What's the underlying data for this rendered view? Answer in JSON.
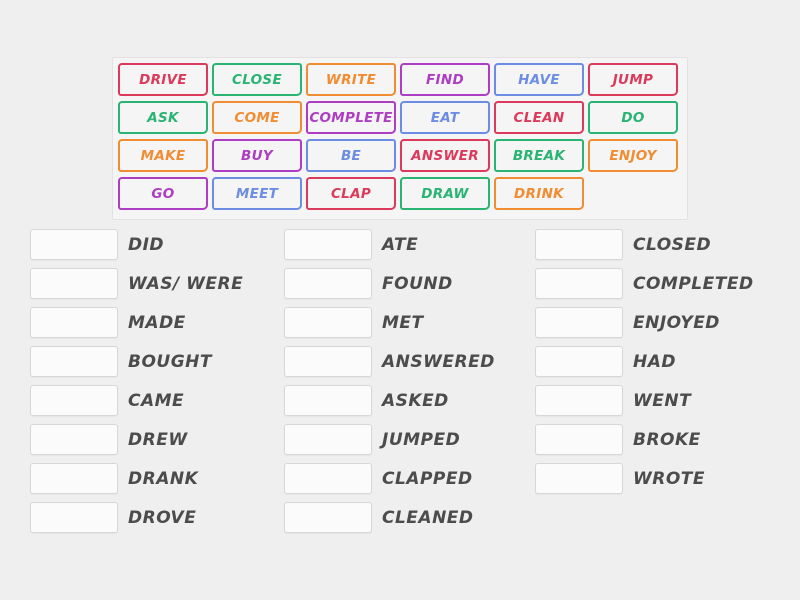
{
  "theme": {
    "page_bg": "#f0eff0",
    "panel_bg": "#f6f5f5",
    "panel_border": "#e3e1e1",
    "slot_bg": "#fcfbfb",
    "slot_border": "#d8d6d6",
    "label_color": "#4d4c4c",
    "palette": {
      "red": "#dc3a5c",
      "green": "#29b473",
      "orange": "#f08d33",
      "purple": "#ad3ec3",
      "blue": "#6d8de4"
    }
  },
  "word_bank": {
    "tiles": [
      {
        "label": "DRIVE",
        "color": "red"
      },
      {
        "label": "CLOSE",
        "color": "green"
      },
      {
        "label": "WRITE",
        "color": "orange"
      },
      {
        "label": "FIND",
        "color": "purple"
      },
      {
        "label": "HAVE",
        "color": "blue"
      },
      {
        "label": "JUMP",
        "color": "red"
      },
      {
        "label": "ASK",
        "color": "green"
      },
      {
        "label": "COME",
        "color": "orange"
      },
      {
        "label": "COMPLETE",
        "color": "purple"
      },
      {
        "label": "EAT",
        "color": "blue"
      },
      {
        "label": "CLEAN",
        "color": "red"
      },
      {
        "label": "DO",
        "color": "green"
      },
      {
        "label": "MAKE",
        "color": "orange"
      },
      {
        "label": "BUY",
        "color": "purple"
      },
      {
        "label": "BE",
        "color": "blue"
      },
      {
        "label": "ANSWER",
        "color": "red"
      },
      {
        "label": "BREAK",
        "color": "green"
      },
      {
        "label": "ENJOY",
        "color": "orange"
      },
      {
        "label": "GO",
        "color": "purple"
      },
      {
        "label": "MEET",
        "color": "blue"
      },
      {
        "label": "CLAP",
        "color": "red"
      },
      {
        "label": "DRAW",
        "color": "green"
      },
      {
        "label": "DRINK",
        "color": "orange"
      }
    ]
  },
  "match_columns": [
    {
      "items": [
        "DID",
        "WAS/ WERE",
        "MADE",
        "BOUGHT",
        "CAME",
        "DREW",
        "DRANK",
        "DROVE"
      ]
    },
    {
      "items": [
        "ATE",
        "FOUND",
        "MET",
        "ANSWERED",
        "ASKED",
        "JUMPED",
        "CLAPPED",
        "CLEANED"
      ]
    },
    {
      "items": [
        "CLOSED",
        "COMPLETED",
        "ENJOYED",
        "HAD",
        "WENT",
        "BROKE",
        "WROTE"
      ]
    }
  ]
}
